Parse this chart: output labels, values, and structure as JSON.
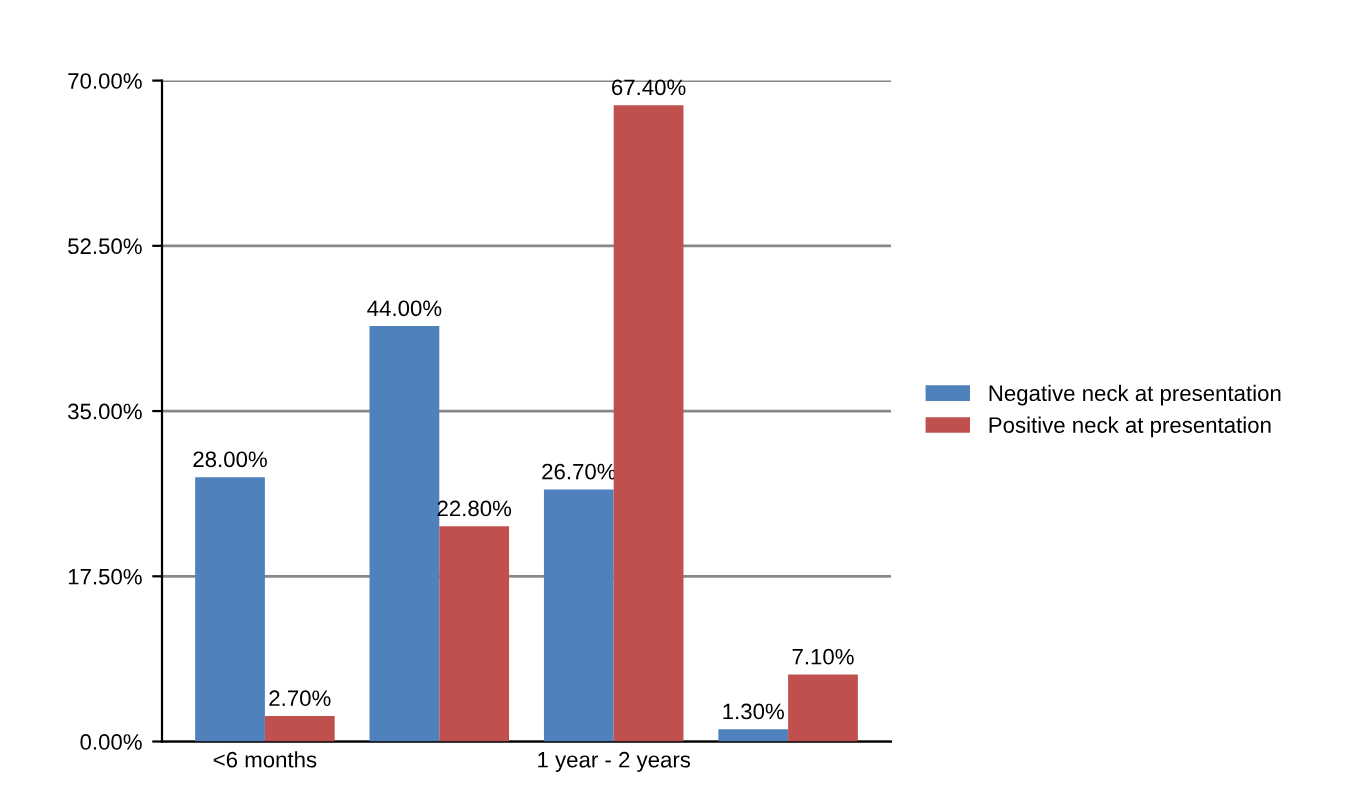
{
  "chart_data": {
    "type": "bar",
    "categories": [
      "<6 months",
      null,
      "1 year - 2 years",
      null
    ],
    "series": [
      {
        "name": "Negative neck at presentation",
        "color": "#4f81bd",
        "values": [
          28.0,
          44.0,
          26.7,
          1.3
        ],
        "value_labels": [
          "28.00%",
          "44.00%",
          "26.70%",
          "1.30%"
        ]
      },
      {
        "name": "Positive neck at presentation",
        "color": "#c0504d",
        "values": [
          2.7,
          22.8,
          67.4,
          7.1
        ],
        "value_labels": [
          "2.70%",
          "22.80%",
          "67.40%",
          "7.10%"
        ]
      }
    ],
    "ylim": [
      0,
      70
    ],
    "yticks": [
      {
        "value": 0,
        "label": "0.00%"
      },
      {
        "value": 17.5,
        "label": "17.50%"
      },
      {
        "value": 35,
        "label": "35.00%"
      },
      {
        "value": 52.5,
        "label": "52.50%"
      },
      {
        "value": 70,
        "label": "70.00%"
      }
    ],
    "grid": "y",
    "legend": "right"
  }
}
